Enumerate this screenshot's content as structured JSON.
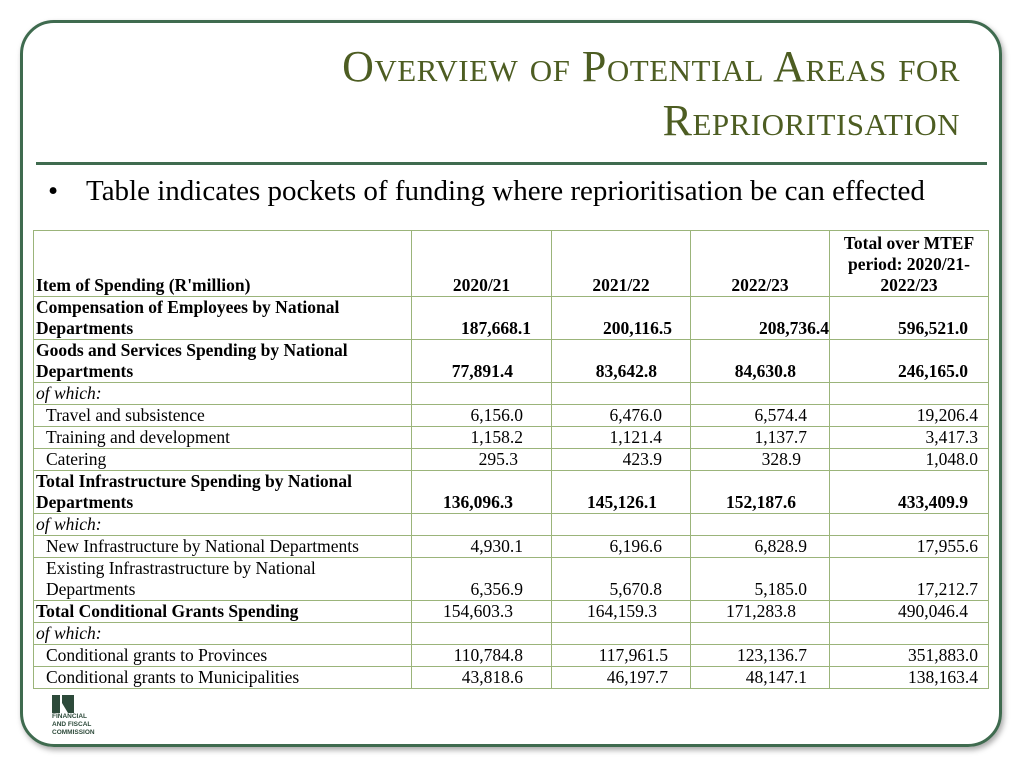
{
  "slide": {
    "title_line1": "Overview of Potential Areas for",
    "title_line2": "Reprioritisation",
    "bullet": "Table indicates pockets of funding where reprioritisation be can effected"
  },
  "table": {
    "headers": [
      "Item of Spending (R'million)",
      "2020/21",
      "2021/22",
      "2022/23",
      "Total over MTEF period: 2020/21-2022/23"
    ],
    "rows": [
      {
        "label": "Compensation of Employees by National Departments",
        "values": [
          "187,668.1",
          "200,116.5",
          "208,736.4",
          "596,521.0"
        ]
      },
      {
        "label": "Goods and Services Spending by National Departments",
        "values": [
          "77,891.4",
          "83,642.8",
          "84,630.8",
          "246,165.0"
        ]
      },
      {
        "label": "of which:",
        "values": [
          "",
          "",
          "",
          ""
        ]
      },
      {
        "label": "Travel and subsistence",
        "values": [
          "6,156.0",
          "6,476.0",
          "6,574.4",
          "19,206.4"
        ]
      },
      {
        "label": "Training and development",
        "values": [
          "1,158.2",
          "1,121.4",
          "1,137.7",
          "3,417.3"
        ]
      },
      {
        "label": "Catering",
        "values": [
          "295.3",
          "423.9",
          "328.9",
          "1,048.0"
        ]
      },
      {
        "label": "Total Infrastructure Spending by National Departments",
        "values": [
          "136,096.3",
          "145,126.1",
          "152,187.6",
          "433,409.9"
        ]
      },
      {
        "label": "of which:",
        "values": [
          "",
          "",
          "",
          ""
        ]
      },
      {
        "label": "New Infrastructure by National Departments",
        "values": [
          "4,930.1",
          "6,196.6",
          "6,828.9",
          "17,955.6"
        ]
      },
      {
        "label": "Existing Infrastrastructure by National Departments",
        "values": [
          "6,356.9",
          "5,670.8",
          "5,185.0",
          "17,212.7"
        ]
      },
      {
        "label": "Total Conditional Grants Spending",
        "values": [
          "154,603.3",
          "164,159.3",
          "171,283.8",
          "490,046.4"
        ]
      },
      {
        "label": "of which:",
        "values": [
          "",
          "",
          "",
          ""
        ]
      },
      {
        "label": "Conditional grants to Provinces",
        "values": [
          "110,784.8",
          "117,961.5",
          "123,136.7",
          "351,883.0"
        ]
      },
      {
        "label": "Conditional grants to Municipalities",
        "values": [
          "43,818.6",
          "46,197.7",
          "48,147.1",
          "138,163.4"
        ]
      }
    ]
  },
  "logo": {
    "line1": "FINANCIAL",
    "line2": "AND FISCAL",
    "line3": "COMMISSION"
  },
  "colors": {
    "title": "#4d5d22",
    "frame": "#3f6b4f",
    "table_border": "#9bb47a"
  }
}
